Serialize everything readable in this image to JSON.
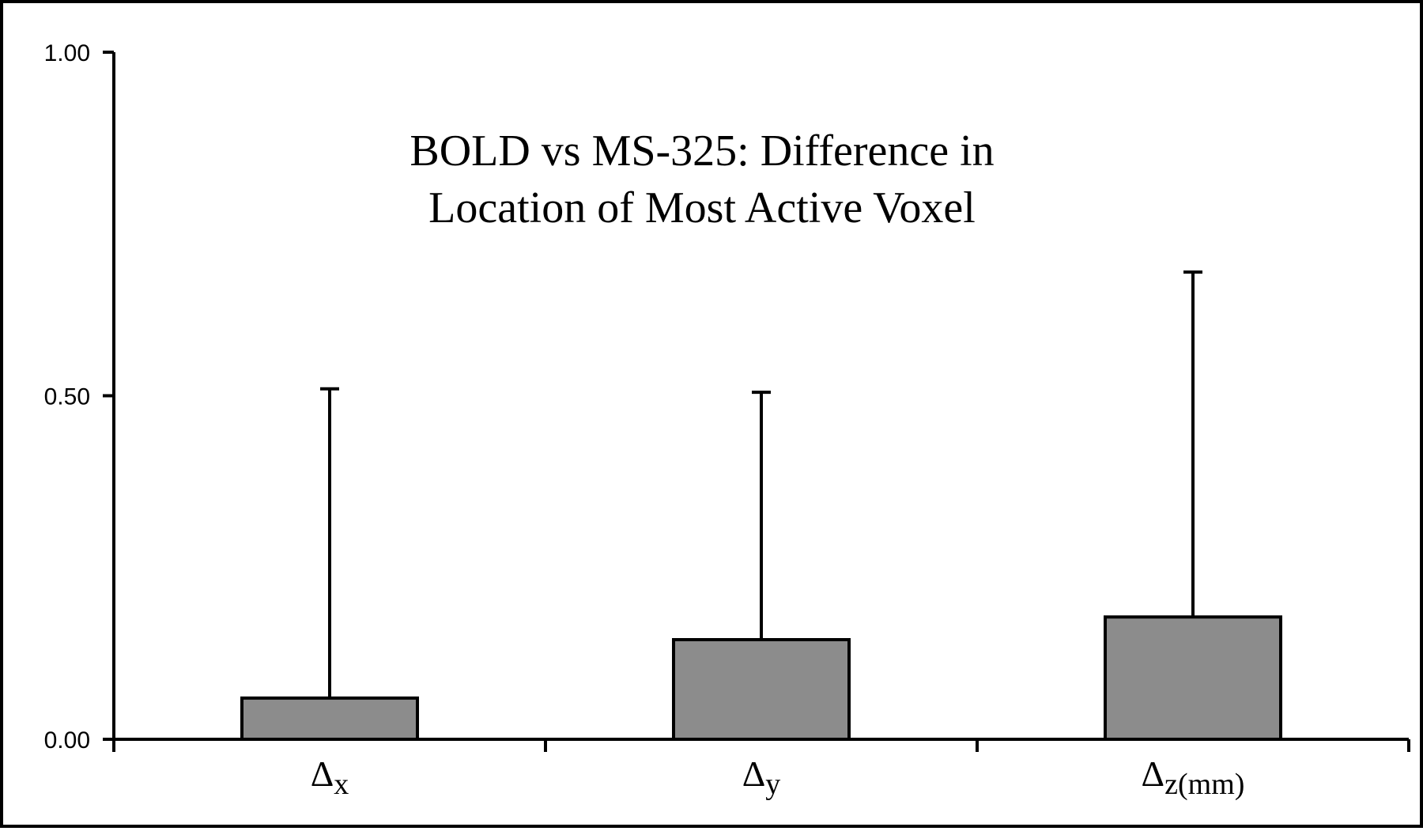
{
  "chart_data": {
    "type": "bar",
    "title": [
      "BOLD vs MS-325: Difference in",
      "Location of Most Active Voxel"
    ],
    "xlabel": "",
    "ylabel": "",
    "ylim": [
      0,
      1.0
    ],
    "yticks": [
      0,
      0.5,
      1.0
    ],
    "ytick_labels": [
      "0.00",
      "0.50",
      "1.00"
    ],
    "categories": [
      {
        "symbol": "Δ",
        "sub": "x"
      },
      {
        "symbol": "Δ",
        "sub": "y"
      },
      {
        "symbol": "Δ",
        "sub": "z(mm)"
      }
    ],
    "values": [
      0.06,
      0.145,
      0.178
    ],
    "error_upper": [
      0.51,
      0.505,
      0.68
    ],
    "grid": false,
    "legend": "none",
    "bar_color": "#8c8c8c",
    "edge_color": "#000000"
  }
}
